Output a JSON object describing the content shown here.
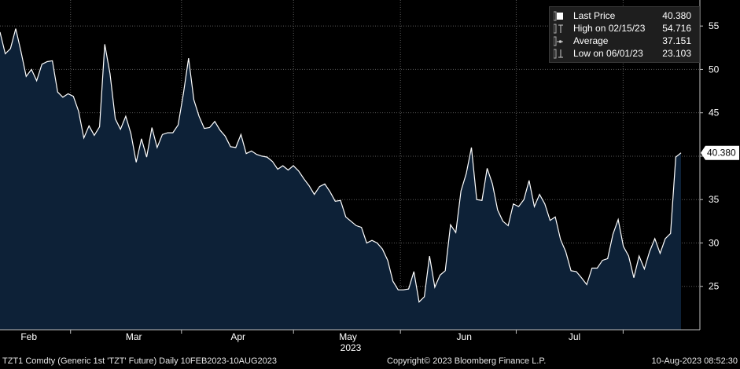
{
  "chart_data": {
    "type": "area",
    "x_labels": [
      "Feb",
      "Mar",
      "Apr",
      "May",
      "Jun",
      "Jul"
    ],
    "year_label": "2023",
    "y_ticks": [
      25,
      30,
      35,
      40,
      45,
      50,
      55
    ],
    "ylim": [
      20,
      58
    ],
    "last_value_label": "40.380",
    "series": [
      {
        "values": [
          54.3,
          51.8,
          52.4,
          54.7,
          52.1,
          49.2,
          50.0,
          48.7,
          50.6,
          50.9,
          51.0,
          47.4,
          46.8,
          47.2,
          46.9,
          45.2,
          42.1,
          43.5,
          42.4,
          43.4,
          52.9,
          49.5,
          44.3,
          43.1,
          44.6,
          42.6,
          39.3,
          42.0,
          39.9,
          43.3,
          41.0,
          42.5,
          42.7,
          42.7,
          43.6,
          47.2,
          51.3,
          46.5,
          44.6,
          43.2,
          43.3,
          44.0,
          43.0,
          42.3,
          41.1,
          41.0,
          42.5,
          40.3,
          40.6,
          40.2,
          40.0,
          39.9,
          39.4,
          38.5,
          38.9,
          38.4,
          38.9,
          38.3,
          37.4,
          36.6,
          35.6,
          36.5,
          36.8,
          35.9,
          34.8,
          34.9,
          33.0,
          32.5,
          32.0,
          31.8,
          30.0,
          30.3,
          30.0,
          29.3,
          28.0,
          25.6,
          24.6,
          24.6,
          24.7,
          26.7,
          23.2,
          23.8,
          28.5,
          24.9,
          26.3,
          26.8,
          32.1,
          31.2,
          36.0,
          38.0,
          41.0,
          35.0,
          34.9,
          38.6,
          36.8,
          33.8,
          32.5,
          32.0,
          34.5,
          34.2,
          35.0,
          37.2,
          34.2,
          35.6,
          34.5,
          32.6,
          33.0,
          30.4,
          29.0,
          26.8,
          26.7,
          26.0,
          25.2,
          27.1,
          27.1,
          28.0,
          28.2,
          31.0,
          32.7,
          29.6,
          28.5,
          26.0,
          28.5,
          27.0,
          29.0,
          30.5,
          28.8,
          30.5,
          31.1,
          39.9,
          40.38
        ]
      }
    ]
  },
  "legend": [
    {
      "icon": "square-icon",
      "label": "Last Price",
      "value": "40.380"
    },
    {
      "icon": "high-marker-icon",
      "label": "High on 02/15/23",
      "value": "54.716"
    },
    {
      "icon": "average-marker-icon",
      "label": "Average",
      "value": "37.151"
    },
    {
      "icon": "low-marker-icon",
      "label": "Low on 06/01/23",
      "value": "23.103"
    }
  ],
  "footer": {
    "security": "TZT1 Comdty (Generic 1st 'TZT' Future)  Daily 10FEB2023-10AUG2023",
    "copyright": "Copyright© 2023 Bloomberg Finance L.P.",
    "timestamp": "10-Aug-2023 08:52:30"
  },
  "colors": {
    "area_fill": "#0d2137",
    "line": "#ffffff",
    "grid": "#5a5a5a",
    "axis_text": "#ffffff"
  }
}
